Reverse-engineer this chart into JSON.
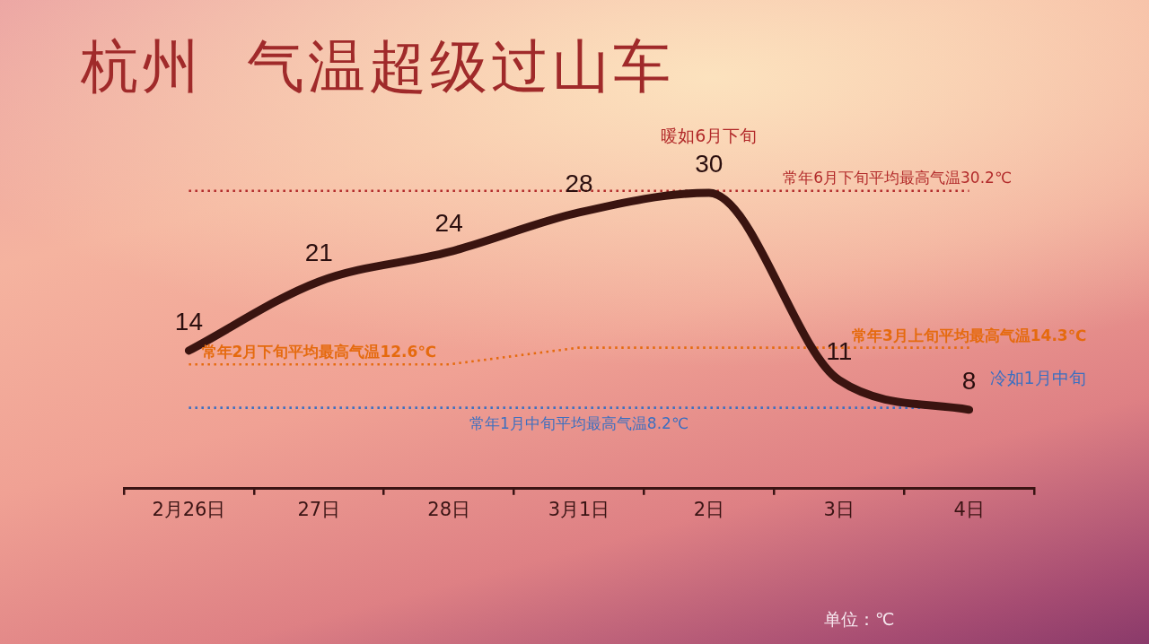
{
  "chart_data": {
    "type": "line",
    "title": "杭州  气温超级过山车",
    "categories": [
      "2月26日",
      "27日",
      "28日",
      "3月1日",
      "2日",
      "3日",
      "4日"
    ],
    "series": [
      {
        "color": "#3a1410",
        "values": [
          14,
          21,
          24,
          28,
          30,
          11,
          8
        ],
        "value_labels": [
          "14",
          "21",
          "24",
          "28",
          "30",
          "11",
          "8"
        ]
      },
      {
        "color": "#e56a0e",
        "values": [
          12.6,
          12.6,
          12.6,
          14.3,
          14.3,
          14.3,
          14.3
        ],
        "line_style": "dotted"
      }
    ],
    "ref_lines": [
      {
        "axis": "y",
        "value": 30.2,
        "label": "常年6月下旬平均最高气温30.2℃",
        "color": "#b22a2a",
        "line_style": "dotted"
      },
      {
        "axis": "y",
        "value": 8.2,
        "label": "常年1月中旬平均最高气温8.2℃",
        "color": "#3c6fc0",
        "line_style": "dotted"
      }
    ],
    "annotations": [
      {
        "text": "暖如6月下旬",
        "x": "2日",
        "y": 30
      },
      {
        "text": "冷如1月中旬",
        "x": "4日",
        "y": 8
      },
      {
        "text": "常年2月下旬平均最高气温12.6℃",
        "x": "27日",
        "y": 12.6
      },
      {
        "text": "常年3月上旬平均最高气温14.3℃",
        "x": "4日",
        "y": 14.3
      },
      "单位：℃"
    ],
    "line_style": "solid",
    "marker": "none",
    "legend": false,
    "grid": false,
    "tick_labels": "x"
  }
}
